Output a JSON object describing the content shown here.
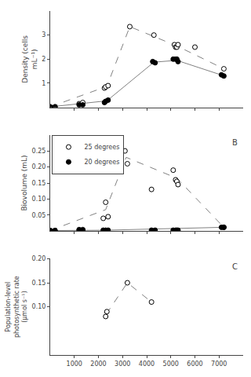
{
  "chart_data": [
    {
      "type": "scatter",
      "ylabel": "Density (cells\nmL⁻¹)",
      "xlim": [
        0,
        8000
      ],
      "xticks": [
        1000,
        2000,
        3000,
        4000,
        5000,
        6000,
        7000
      ],
      "ylim": [
        0,
        4
      ],
      "yticks": [
        1,
        2,
        3
      ],
      "tick_labels": "y",
      "grid": false,
      "series": [
        {
          "type": "line",
          "line_style": "dashed",
          "color": "gray",
          "x": [
            0,
            2350,
            3300,
            5250,
            7200
          ],
          "values": [
            0.02,
            0.87,
            3.35,
            2.55,
            1.6
          ]
        },
        {
          "type": "line",
          "line_style": "solid",
          "color": "gray",
          "x": [
            0,
            2350,
            4300,
            5250,
            7150
          ],
          "values": [
            0.02,
            0.27,
            1.875,
            1.95,
            1.325
          ]
        },
        {
          "type": "scatter",
          "marker": "circle-open",
          "color": "black",
          "x": [
            0,
            200,
            1200,
            1350,
            2250,
            2300,
            2400,
            3300,
            4300,
            5150,
            5200,
            5250,
            5300,
            6000,
            7200
          ],
          "values": [
            0.02,
            0.02,
            0.15,
            0.2,
            0.8,
            0.85,
            0.9,
            3.35,
            3.0,
            2.6,
            2.5,
            2.5,
            2.6,
            2.5,
            1.6
          ]
        },
        {
          "type": "scatter",
          "marker": "circle",
          "color": "black",
          "x": [
            0,
            200,
            1200,
            1350,
            2250,
            2300,
            2400,
            4250,
            4350,
            5100,
            5200,
            5250,
            5300,
            7100,
            7200
          ],
          "values": [
            0.02,
            0.02,
            0.1,
            0.1,
            0.2,
            0.25,
            0.3,
            1.9,
            1.85,
            2.0,
            2.0,
            2.0,
            1.9,
            1.35,
            1.3
          ]
        }
      ]
    },
    {
      "type": "scatter",
      "ylabel": "Biovolume (mL)",
      "xlim": [
        0,
        8000
      ],
      "xticks": [
        1000,
        2000,
        3000,
        4000,
        5000,
        6000,
        7000
      ],
      "ylim": [
        0,
        0.3
      ],
      "yticks": [
        0.05,
        {
          "value": 0.1,
          "label": "0.10"
        },
        0.15,
        {
          "value": 0.2,
          "label": "0.20"
        },
        0.25
      ],
      "tick_labels": "y",
      "grid": false,
      "legend": "upper left",
      "annotations": [
        "B"
      ],
      "series": [
        {
          "type": "line",
          "line_style": "dashed",
          "color": "gray",
          "x": [
            0,
            2300,
            3150,
            5250,
            7200
          ],
          "values": [
            0.002,
            0.067,
            0.23,
            0.165,
            0.012
          ]
        },
        {
          "type": "line",
          "line_style": "solid",
          "color": "gray",
          "x": [
            0,
            2300,
            7150
          ],
          "values": [
            0.002,
            0.003,
            0.012
          ]
        },
        {
          "type": "scatter",
          "marker": "circle-open",
          "color": "black",
          "name": "25 degrees",
          "x": [
            0,
            200,
            1200,
            1350,
            2200,
            2300,
            2400,
            3100,
            3200,
            4200,
            5100,
            5200,
            5250,
            5300,
            7200
          ],
          "values": [
            0.002,
            0.002,
            0.005,
            0.005,
            0.04,
            0.09,
            0.045,
            0.25,
            0.21,
            0.13,
            0.19,
            0.16,
            0.155,
            0.145,
            0.012
          ]
        },
        {
          "type": "scatter",
          "marker": "circle",
          "color": "black",
          "name": "20 degrees",
          "x": [
            0,
            200,
            1200,
            1350,
            2200,
            2300,
            2400,
            4200,
            4350,
            5100,
            5200,
            5250,
            5300,
            7100,
            7200
          ],
          "values": [
            0.002,
            0.002,
            0.003,
            0.003,
            0.003,
            0.003,
            0.003,
            0.003,
            0.003,
            0.003,
            0.003,
            0.003,
            0.003,
            0.012,
            0.012
          ]
        }
      ]
    },
    {
      "type": "scatter",
      "ylabel": "Population-level\nphotosynthetic rate\n(μmol s⁻¹)",
      "xlim": [
        0,
        8000
      ],
      "xticks": [
        1000,
        2000,
        3000,
        4000,
        5000,
        6000,
        7000
      ],
      "ylim": [
        0.0,
        0.2
      ],
      "yticks": [
        {
          "value": 0.1,
          "label": "0.10"
        },
        0.15,
        {
          "value": 0.2,
          "label": "0.20"
        }
      ],
      "grid": false,
      "annotations": [
        "C"
      ],
      "series": [
        {
          "type": "line",
          "line_style": "dashed",
          "color": "gray",
          "x": [
            2325,
            3200,
            4200
          ],
          "values": [
            0.085,
            0.15,
            0.11
          ]
        },
        {
          "type": "scatter",
          "marker": "circle-open",
          "color": "black",
          "x": [
            2300,
            2350,
            3200,
            4200
          ],
          "values": [
            0.08,
            0.09,
            0.15,
            0.11
          ]
        }
      ]
    }
  ]
}
